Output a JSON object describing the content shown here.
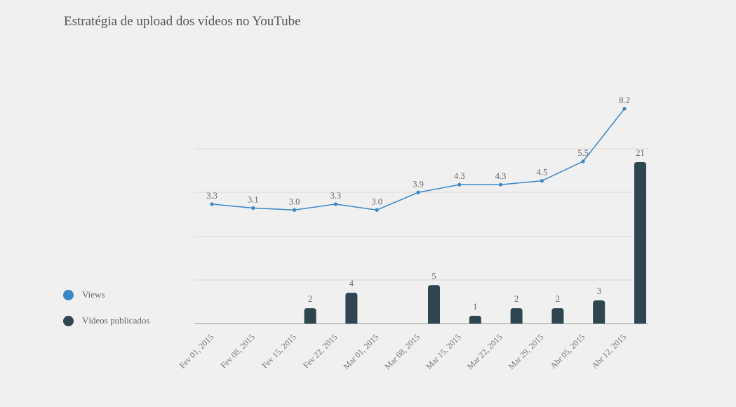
{
  "chart_data": {
    "type": "bar+line",
    "title": "Estratégia de upload dos vídeos no YouTube",
    "categories": [
      "Fev 01, 2015",
      "Fev 08, 2015",
      "Fev 15, 2015",
      "Fev 22, 2015",
      "Mar 01, 2015",
      "Mar 08, 2015",
      "Mar 15, 2015",
      "Mar 22, 2015",
      "Mar 29, 2015",
      "Abr 05, 2015",
      "Abr 12, 2015"
    ],
    "series": [
      {
        "name": "Views",
        "type": "line",
        "color": "#3a87c8",
        "values": [
          3.3,
          3.1,
          3.0,
          3.3,
          3.0,
          3.9,
          4.3,
          4.3,
          4.5,
          5.5,
          8.2
        ],
        "labels": [
          "3.3",
          "3.1",
          "3.0",
          "3.3",
          "3.0",
          "3.9",
          "4.3",
          "4.3",
          "4.5",
          "5.5",
          "8.2"
        ]
      },
      {
        "name": "Vídeos publicados",
        "type": "bar",
        "color": "#2f4550",
        "values": [
          0,
          0,
          2,
          4,
          0,
          5,
          1,
          2,
          2,
          3,
          21
        ],
        "labels": [
          "",
          "",
          "2",
          "4",
          "",
          "5",
          "1",
          "2",
          "2",
          "3",
          "21"
        ]
      }
    ],
    "grid": true,
    "legend_position": "left"
  }
}
